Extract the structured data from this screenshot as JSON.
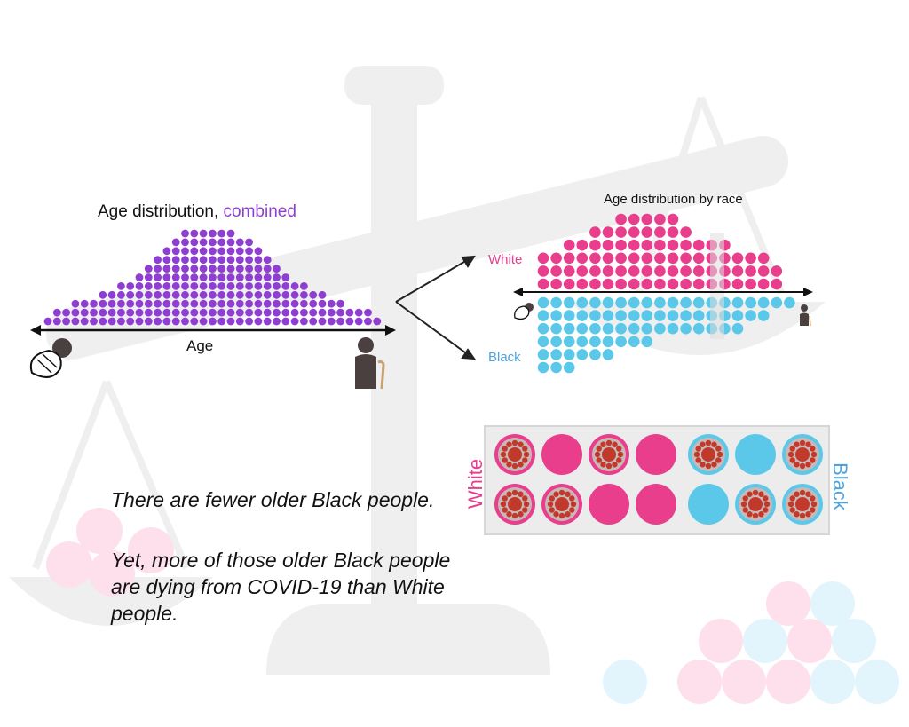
{
  "combined": {
    "title_prefix": "Age distribution, ",
    "title_accent": "combined",
    "axis_label": "Age"
  },
  "by_race": {
    "title": "Age distribution by race",
    "white_label": "White",
    "black_label": "Black"
  },
  "panel": {
    "white_label": "White",
    "black_label": "Black"
  },
  "messages": {
    "line1": "There are fewer older Black people.",
    "line2": "Yet, more of those older Black people are dying from COVID-19 than White people."
  },
  "colors": {
    "combined": "#8e3fd1",
    "white": "#e83e8c",
    "black": "#5bc8ea",
    "background_shape": "#efefef",
    "virus": "#c0392b"
  },
  "diagram": {
    "combined_column_heights": [
      1,
      2,
      2,
      3,
      3,
      3,
      4,
      4,
      5,
      5,
      6,
      7,
      8,
      9,
      10,
      11,
      11,
      11,
      11,
      11,
      11,
      10,
      10,
      9,
      8,
      7,
      6,
      5,
      5,
      4,
      4,
      3,
      3,
      2,
      2,
      2,
      1
    ],
    "white_column_heights": [
      3,
      3,
      4,
      4,
      5,
      5,
      6,
      6,
      6,
      6,
      6,
      5,
      4,
      4,
      4,
      3,
      3,
      3,
      2
    ],
    "black_column_heights": [
      6,
      6,
      6,
      5,
      5,
      5,
      4,
      4,
      4,
      3,
      3,
      3,
      3,
      3,
      3,
      3,
      2,
      2,
      1,
      1
    ],
    "panel_white_cells": [
      [
        true,
        false,
        true,
        false
      ],
      [
        true,
        true,
        false,
        false
      ]
    ],
    "panel_black_cells": [
      [
        true,
        false,
        true
      ],
      [
        false,
        true,
        true
      ]
    ]
  }
}
